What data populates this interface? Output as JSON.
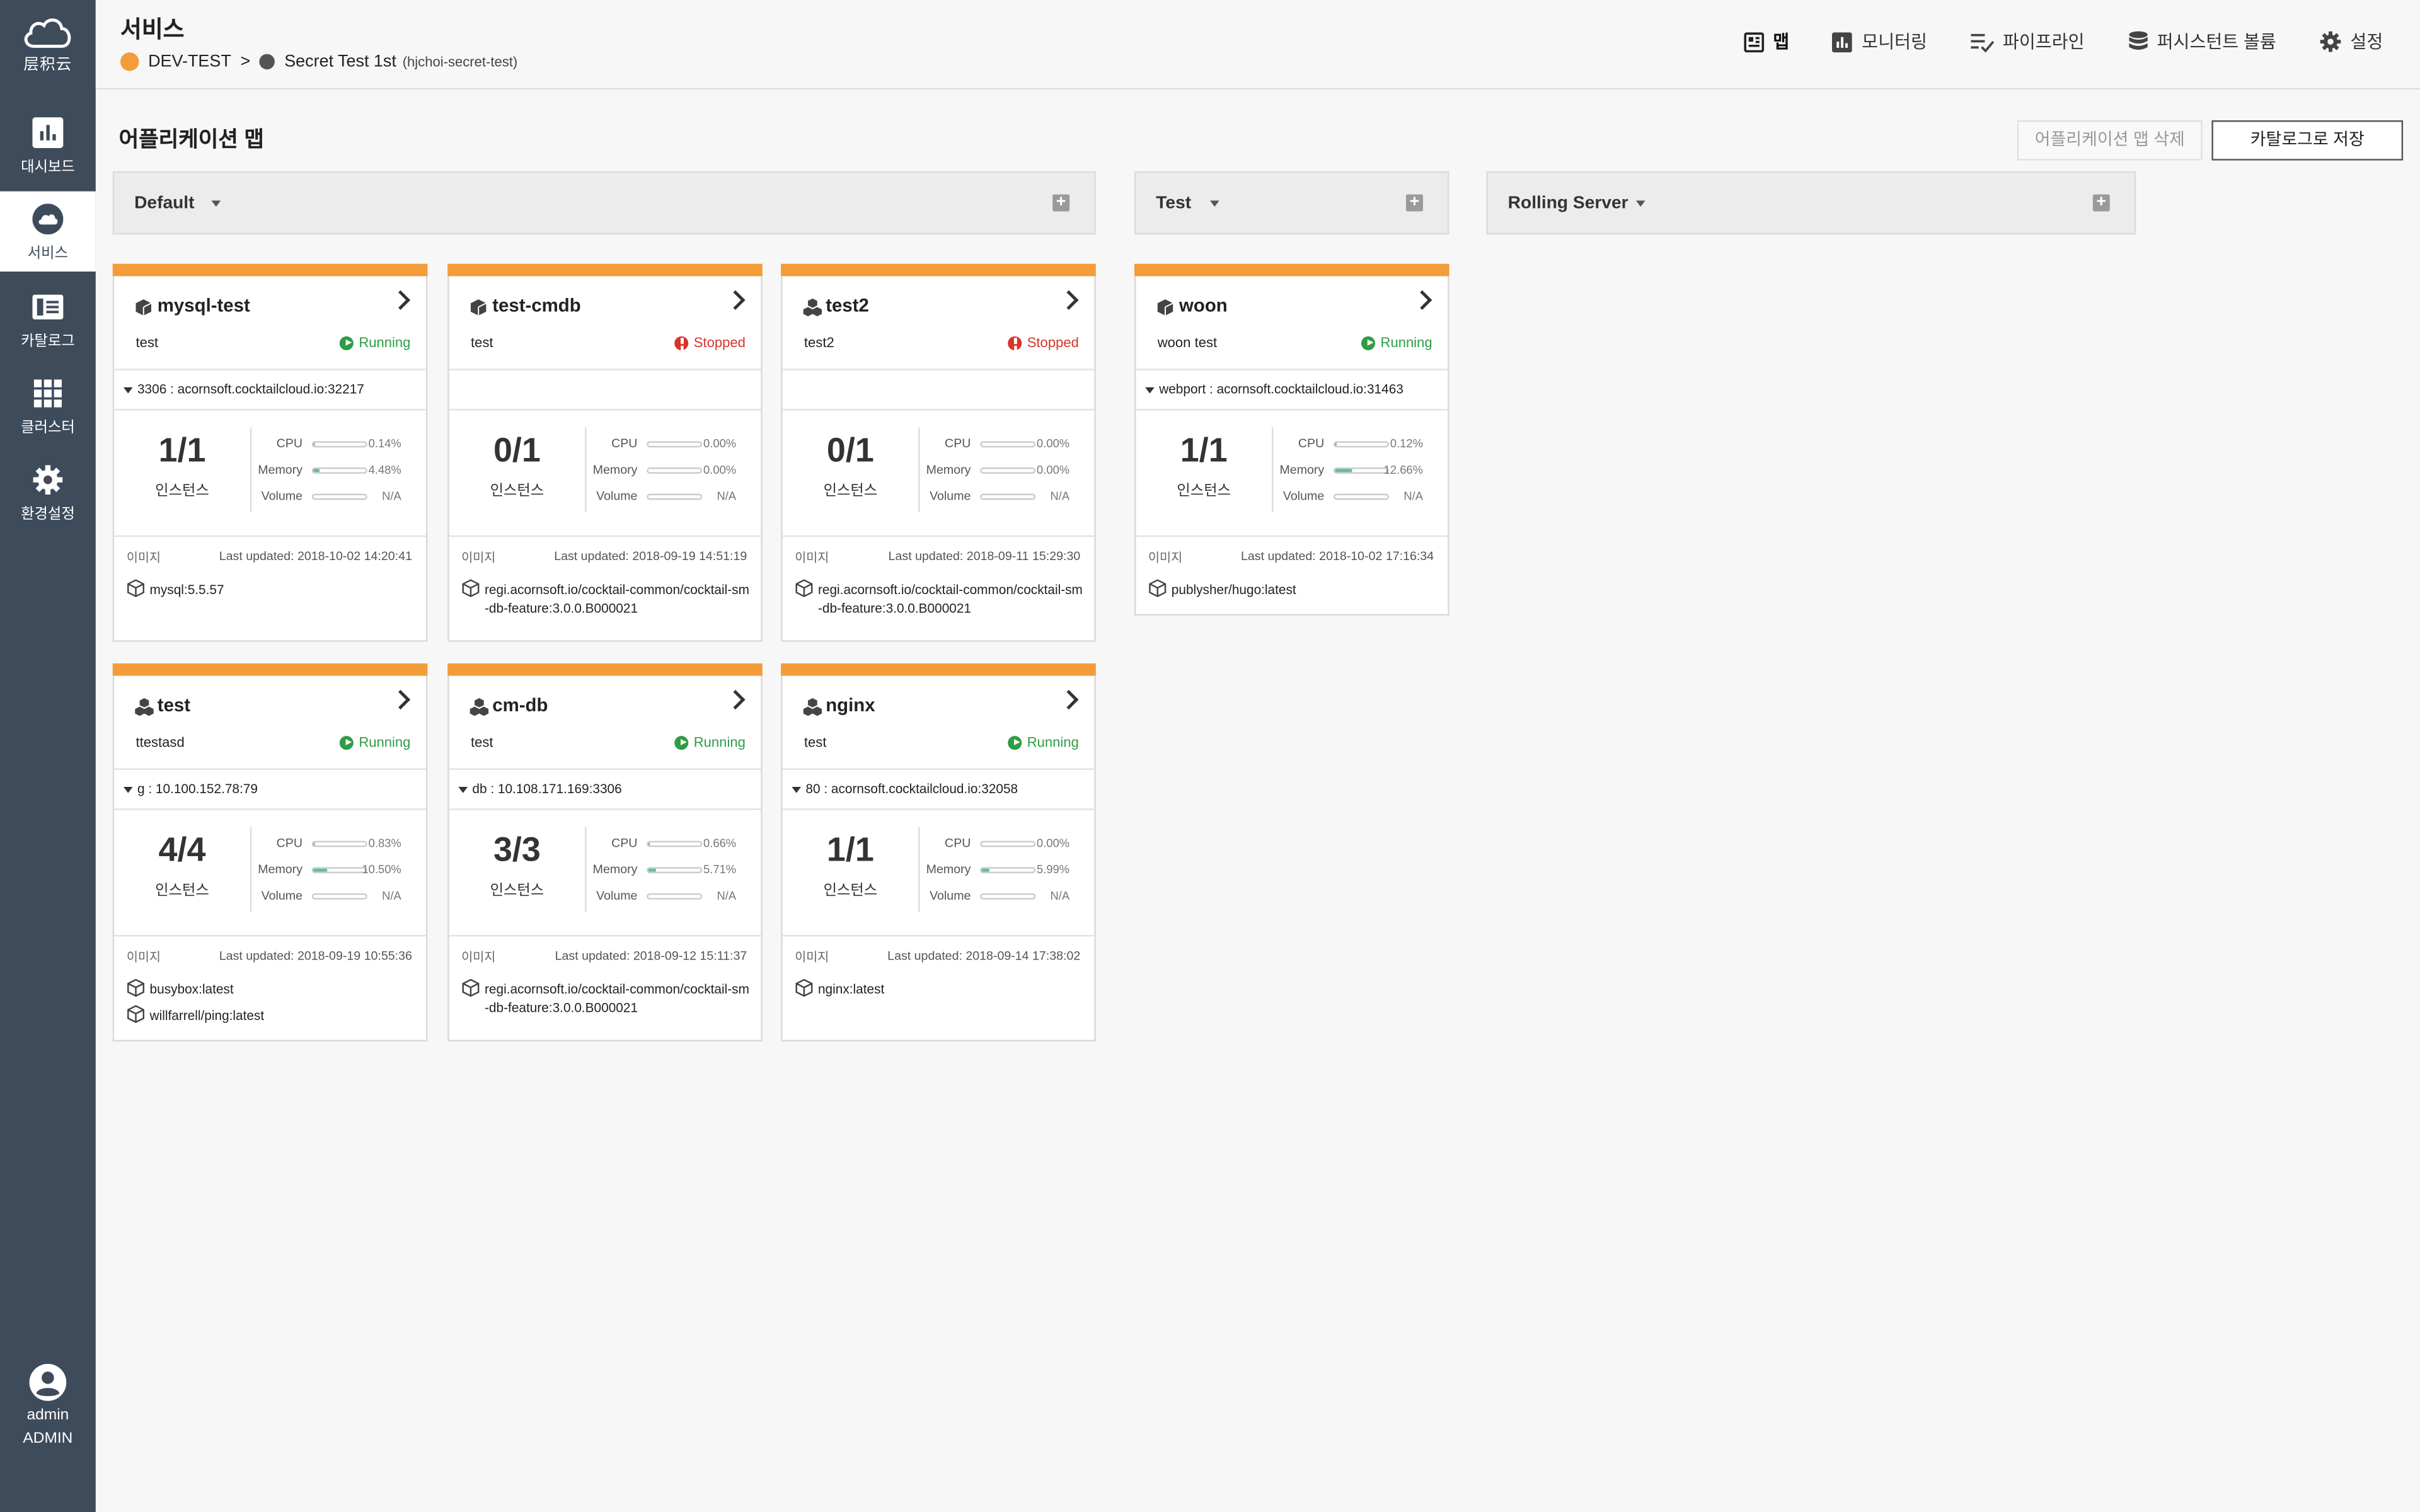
{
  "brand": {
    "name": "层积云"
  },
  "sidebar": {
    "items": [
      {
        "label": "대시보드",
        "icon": "bar-chart-icon"
      },
      {
        "label": "서비스",
        "icon": "cloud-icon"
      },
      {
        "label": "카탈로그",
        "icon": "catalog-book-icon"
      },
      {
        "label": "클러스터",
        "icon": "grid-icon"
      },
      {
        "label": "환경설정",
        "icon": "gear-icon"
      }
    ],
    "active": "서비스",
    "user": {
      "name": "admin",
      "role": "ADMIN"
    }
  },
  "header": {
    "title": "서비스",
    "breadcrumb": {
      "account": "DEV-TEST",
      "separator": ">",
      "service": "Secret Test 1st",
      "service_id": "(hjchoi-secret-test)"
    },
    "nav": [
      {
        "label": "맵",
        "icon": "map-icon",
        "active": true
      },
      {
        "label": "모니터링",
        "icon": "monitoring-icon"
      },
      {
        "label": "파이프라인",
        "icon": "pipeline-icon"
      },
      {
        "label": "퍼시스턴트 볼륨",
        "icon": "database-icon"
      },
      {
        "label": "설정",
        "icon": "gear-icon"
      }
    ]
  },
  "main": {
    "title": "어플리케이션 맵",
    "delete_label": "어플리케이션 맵 삭제",
    "save_label": "카탈로그로 저장",
    "image_label": "이미지",
    "instance_label": "인스턴스",
    "metric_labels": {
      "cpu": "CPU",
      "memory": "Memory",
      "volume": "Volume"
    },
    "groups": [
      {
        "name": "Default"
      },
      {
        "name": "Test"
      },
      {
        "name": "Rolling Server"
      }
    ],
    "cards": [
      {
        "name": "mysql-test",
        "type": "single",
        "desc": "test",
        "status": "Running",
        "port": "3306 : acornsoft.cocktailcloud.io:32217",
        "instances": "1/1",
        "cpu": "0.14%",
        "cpu_pct": 0.14,
        "memory": "4.48%",
        "memory_pct": 4.48,
        "volume": "N/A",
        "updated": "Last updated: 2018-10-02 14:20:41",
        "images": [
          "mysql:5.5.57"
        ]
      },
      {
        "name": "test-cmdb",
        "type": "single",
        "desc": "test",
        "status": "Stopped",
        "port": "",
        "instances": "0/1",
        "cpu": "0.00%",
        "cpu_pct": 0,
        "memory": "0.00%",
        "memory_pct": 0,
        "volume": "N/A",
        "updated": "Last updated: 2018-09-19 14:51:19",
        "images": [
          "regi.acornsoft.io/cocktail-common/cocktail-sm-db-feature:3.0.0.B000021"
        ]
      },
      {
        "name": "test2",
        "type": "multi",
        "desc": "test2",
        "status": "Stopped",
        "port": "",
        "instances": "0/1",
        "cpu": "0.00%",
        "cpu_pct": 0,
        "memory": "0.00%",
        "memory_pct": 0,
        "volume": "N/A",
        "updated": "Last updated: 2018-09-11 15:29:30",
        "images": [
          "regi.acornsoft.io/cocktail-common/cocktail-sm-db-feature:3.0.0.B000021"
        ]
      },
      {
        "name": "woon",
        "type": "single",
        "desc": "woon test",
        "status": "Running",
        "port": "webport : acornsoft.cocktailcloud.io:31463",
        "instances": "1/1",
        "cpu": "0.12%",
        "cpu_pct": 0.12,
        "memory": "12.66%",
        "memory_pct": 12.66,
        "volume": "N/A",
        "updated": "Last updated: 2018-10-02 17:16:34",
        "images": [
          "publysher/hugo:latest"
        ]
      },
      {
        "name": "test",
        "type": "multi",
        "desc": "ttestasd",
        "status": "Running",
        "port": "g : 10.100.152.78:79",
        "instances": "4/4",
        "cpu": "0.83%",
        "cpu_pct": 0.83,
        "memory": "10.50%",
        "memory_pct": 10.5,
        "volume": "N/A",
        "updated": "Last updated: 2018-09-19 10:55:36",
        "images": [
          "busybox:latest",
          "willfarrell/ping:latest"
        ]
      },
      {
        "name": "cm-db",
        "type": "multi",
        "desc": "test",
        "status": "Running",
        "port": "db : 10.108.171.169:3306",
        "instances": "3/3",
        "cpu": "0.66%",
        "cpu_pct": 0.66,
        "memory": "5.71%",
        "memory_pct": 5.71,
        "volume": "N/A",
        "updated": "Last updated: 2018-09-12 15:11:37",
        "images": [
          "regi.acornsoft.io/cocktail-common/cocktail-sm-db-feature:3.0.0.B000021"
        ]
      },
      {
        "name": "nginx",
        "type": "multi",
        "desc": "test",
        "status": "Running",
        "port": "80 : acornsoft.cocktailcloud.io:32058",
        "instances": "1/1",
        "cpu": "0.00%",
        "cpu_pct": 0,
        "memory": "5.99%",
        "memory_pct": 5.99,
        "volume": "N/A",
        "updated": "Last updated: 2018-09-14 17:38:02",
        "images": [
          "nginx:latest"
        ]
      }
    ]
  }
}
